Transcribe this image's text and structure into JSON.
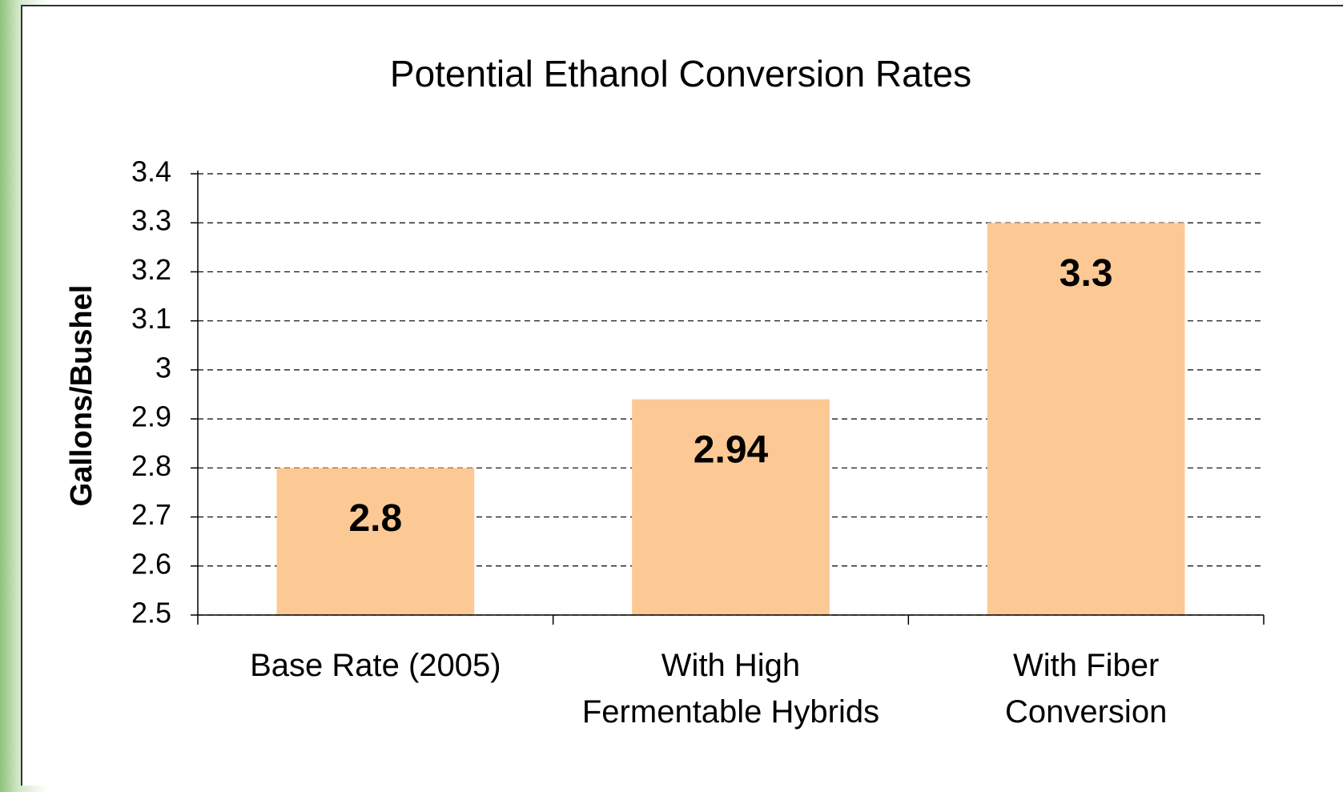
{
  "chart_data": {
    "type": "bar",
    "title": "Potential Ethanol Conversion Rates",
    "y_label": "Gallons/Bushel",
    "categories": [
      "Base Rate (2005)",
      "With High\nFermentable Hybrids",
      "With Fiber\nConversion"
    ],
    "values": [
      2.8,
      2.94,
      3.3
    ],
    "color": "#fcc994",
    "ylim": [
      2.5,
      3.4
    ],
    "yticks": [
      2.5,
      2.6,
      2.7,
      2.8,
      2.9,
      3,
      3.1,
      3.2,
      3.3,
      3.4
    ],
    "grid": true
  }
}
